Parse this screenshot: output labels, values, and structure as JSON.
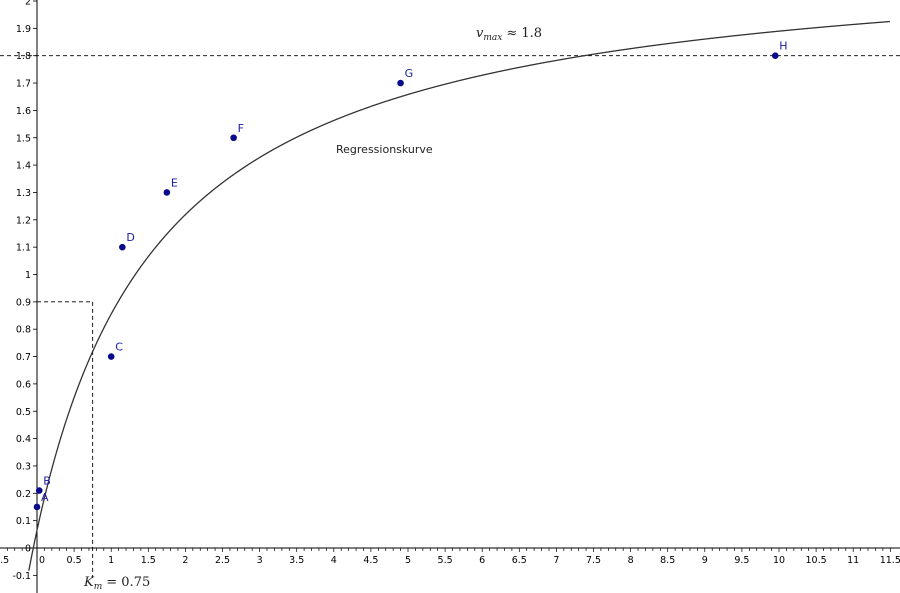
{
  "chart_data": {
    "type": "scatter",
    "xlim": [
      -0.5,
      11.5
    ],
    "ylim": [
      -0.17,
      2.0
    ],
    "x_tick_step": 0.5,
    "y_tick_step": 0.1,
    "grid": false,
    "points": [
      {
        "label": "A",
        "x": 0.0,
        "y": 0.15
      },
      {
        "label": "B",
        "x": 0.03,
        "y": 0.21
      },
      {
        "label": "C",
        "x": 1.0,
        "y": 0.7
      },
      {
        "label": "D",
        "x": 1.15,
        "y": 1.1
      },
      {
        "label": "E",
        "x": 1.75,
        "y": 1.3
      },
      {
        "label": "F",
        "x": 2.65,
        "y": 1.5
      },
      {
        "label": "G",
        "x": 4.9,
        "y": 1.7
      },
      {
        "label": "H",
        "x": 9.95,
        "y": 1.8
      }
    ],
    "curve": {
      "label": "Regressionskurve",
      "vmax": 2.2,
      "km": 1.65,
      "x_intercept": -0.05
    },
    "reference_lines": {
      "horizontal_y": 1.8,
      "dashed_corner": {
        "x": 0.75,
        "y": 0.9
      }
    },
    "annotations": {
      "vmax": {
        "symbol": "v",
        "subscript": "max",
        "text": "≈ 1.8"
      },
      "km": {
        "symbol": "K",
        "subscript": "m",
        "text": "= 0.75"
      }
    }
  },
  "colors": {
    "point": "#0a0a8c",
    "point_label": "#1a1aa6",
    "curve": "#333333",
    "axis": "#000000"
  }
}
